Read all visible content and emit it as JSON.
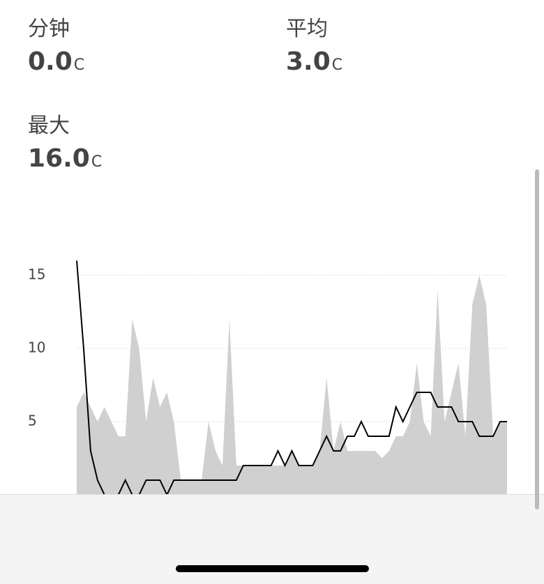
{
  "stats": [
    {
      "label": "分钟",
      "value": "0.0",
      "unit": "C"
    },
    {
      "label": "平均",
      "value": "3.0",
      "unit": "C"
    },
    {
      "label": "最大",
      "value": "16.0",
      "unit": "C"
    }
  ],
  "chart_data": {
    "type": "line",
    "ylim": [
      0,
      16
    ],
    "yticks": [
      5,
      10,
      15
    ],
    "grid": true,
    "series": [
      {
        "kind": "area",
        "color": "#d0d0d0",
        "values": [
          6,
          7,
          6,
          5,
          6,
          5,
          4,
          4,
          12,
          10,
          5,
          8,
          6,
          7,
          5,
          1,
          1,
          1,
          1,
          5,
          3,
          2,
          12,
          2,
          2,
          2,
          2,
          2,
          2,
          2,
          2,
          3,
          2,
          2,
          2,
          3,
          8,
          3,
          5,
          3,
          3,
          3,
          3,
          3,
          2.5,
          3,
          4,
          4,
          5,
          9,
          5,
          4,
          14,
          5,
          7,
          9,
          4,
          13,
          15,
          13,
          4,
          5,
          5
        ]
      },
      {
        "kind": "line",
        "color": "#000000",
        "values": [
          16,
          10,
          3,
          1,
          0,
          0,
          0,
          1,
          0,
          0,
          1,
          1,
          1,
          0,
          1,
          1,
          1,
          1,
          1,
          1,
          1,
          1,
          1,
          1,
          2,
          2,
          2,
          2,
          2,
          3,
          2,
          3,
          2,
          2,
          2,
          3,
          4,
          3,
          3,
          4,
          4,
          5,
          4,
          4,
          4,
          4,
          6,
          5,
          6,
          7,
          7,
          7,
          6,
          6,
          6,
          5,
          5,
          5,
          4,
          4,
          4,
          5,
          5
        ]
      }
    ]
  }
}
